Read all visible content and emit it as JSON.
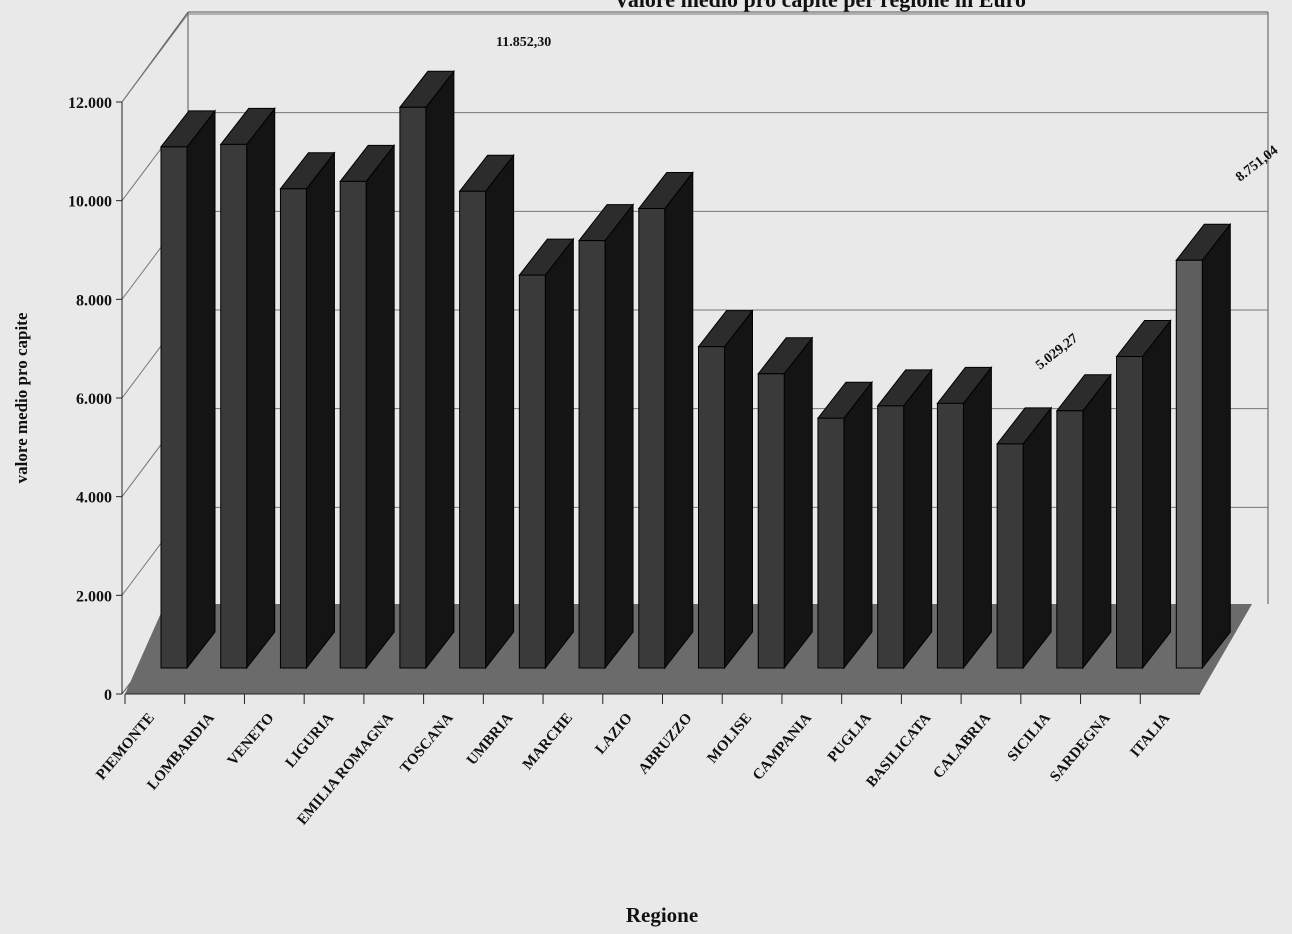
{
  "chart_data": {
    "type": "bar",
    "title": "Valore medio pro capite per regione in Euro",
    "xlabel": "Regione",
    "ylabel": "valore medio pro capite",
    "ylim": [
      0,
      12000
    ],
    "yticks": [
      "0",
      "2.000",
      "4.000",
      "6.000",
      "8.000",
      "10.000",
      "12.000"
    ],
    "grid": true,
    "categories": [
      "PIEMONTE",
      "LOMBARDIA",
      "VENETO",
      "LIGURIA",
      "EMILIA ROMAGNA",
      "TOSCANA",
      "UMBRIA",
      "MARCHE",
      "LAZIO",
      "ABRUZZO",
      "MOLISE",
      "CAMPANIA",
      "PUGLIA",
      "BASILICATA",
      "CALABRIA",
      "SICILIA",
      "SARDEGNA",
      "ITALIA"
    ],
    "values": [
      11050,
      11100,
      10200,
      10350,
      11852.3,
      10150,
      8450,
      9150,
      9800,
      7000,
      6450,
      5550,
      5800,
      5850,
      5029.27,
      5700,
      6800,
      8751.04
    ],
    "annotations": [
      {
        "category": "EMILIA ROMAGNA",
        "text": "11.852,30"
      },
      {
        "category": "CALABRIA",
        "text": "5.029,27"
      },
      {
        "category": "ITALIA",
        "text": "8.751,04"
      }
    ],
    "colors": {
      "bar_front": "#3a3a3a",
      "bar_side": "#141414",
      "bar_top": "#2c2c2c",
      "highlight_front": "#5e5e5e",
      "floor": "#6b6b6b",
      "background": "#e9e9e9"
    }
  }
}
